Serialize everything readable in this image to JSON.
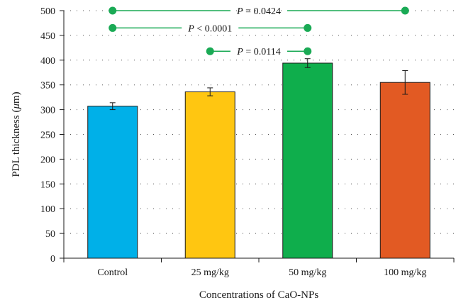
{
  "chart_data": {
    "type": "bar",
    "title": "",
    "xlabel": "Concentrations of CaO-NPs",
    "ylabel_main": "PDL thickness (",
    "ylabel_unit_mu": "μ",
    "ylabel_unit_rest": "m)",
    "categories": [
      "Control",
      "25 mg/kg",
      "50 mg/kg",
      "100 mg/kg"
    ],
    "values": [
      307,
      336,
      394,
      355
    ],
    "errors": [
      7,
      8,
      9,
      24
    ],
    "colors": [
      "#00b0e8",
      "#ffc611",
      "#0fae4c",
      "#e25a23"
    ],
    "ylim": [
      0,
      500
    ],
    "yticks": [
      0,
      50,
      100,
      150,
      200,
      250,
      300,
      350,
      400,
      450,
      500
    ],
    "grid": "dotted-horizontal",
    "comparisons": [
      {
        "from": 0,
        "to": 3,
        "y": 500,
        "p_symbol": "P",
        "p_text": " = 0.0424"
      },
      {
        "from": 0,
        "to": 2,
        "y": 465,
        "p_symbol": "P",
        "p_text": " < 0.0001"
      },
      {
        "from": 1,
        "to": 2,
        "y": 418,
        "p_symbol": "P",
        "p_text": " = 0.0114"
      }
    ],
    "comparison_color": "#1aaa55"
  }
}
